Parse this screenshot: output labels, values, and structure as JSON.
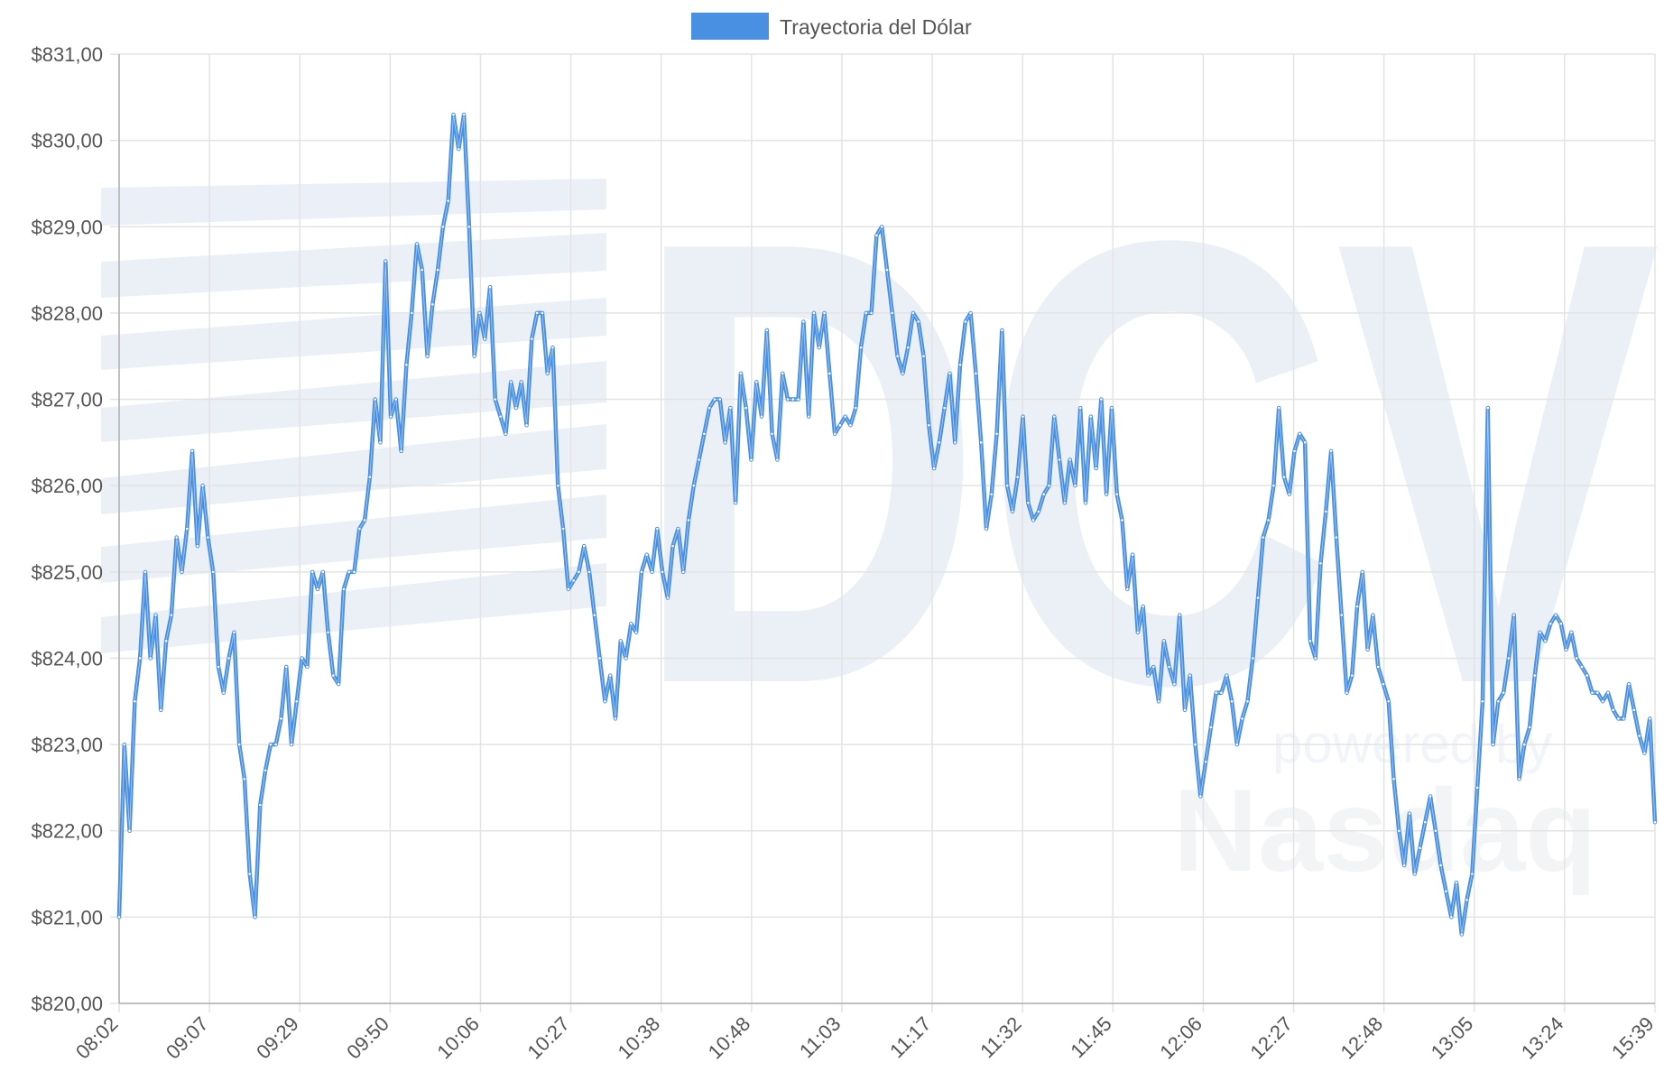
{
  "watermark": {
    "brand": "DCV",
    "tagline": "powered by",
    "partner": "Nasdaq"
  },
  "colors": {
    "series": "#4a90e2",
    "grid": "#e3e3e3",
    "axis": "#b0b0b0",
    "text": "#555555",
    "watermark": "#dbe4f2"
  },
  "chart_data": {
    "type": "line",
    "title": "",
    "xlabel": "",
    "ylabel": "",
    "legend": {
      "position": "top-center",
      "entries": [
        "Trayectoria del Dólar"
      ]
    },
    "grid": true,
    "ylim": [
      820,
      831
    ],
    "y_ticks": [
      "$831,00",
      "$830,00",
      "$829,00",
      "$828,00",
      "$827,00",
      "$826,00",
      "$825,00",
      "$824,00",
      "$823,00",
      "$822,00",
      "$821,00",
      "$820,00"
    ],
    "x_ticks": [
      "08:02",
      "09:07",
      "09:29",
      "09:50",
      "10:06",
      "10:27",
      "10:38",
      "10:48",
      "11:03",
      "11:17",
      "11:32",
      "11:45",
      "12:06",
      "12:27",
      "12:48",
      "13:05",
      "13:24",
      "15:39"
    ],
    "series": [
      {
        "name": "Trayectoria del Dólar",
        "color": "#4a90e2",
        "values": [
          821.0,
          823.0,
          822.0,
          823.5,
          824.0,
          825.0,
          824.0,
          824.5,
          823.4,
          824.2,
          824.5,
          825.4,
          825.0,
          825.5,
          826.4,
          825.3,
          826.0,
          825.4,
          825.0,
          823.9,
          823.6,
          824.0,
          824.3,
          823.0,
          822.6,
          821.5,
          821.0,
          822.3,
          822.7,
          823.0,
          823.0,
          823.3,
          823.9,
          823.0,
          823.5,
          824.0,
          823.9,
          825.0,
          824.8,
          825.0,
          824.3,
          823.8,
          823.7,
          824.8,
          825.0,
          825.0,
          825.5,
          825.6,
          826.1,
          827.0,
          826.5,
          828.6,
          826.8,
          827.0,
          826.4,
          827.4,
          828.0,
          828.8,
          828.5,
          827.5,
          828.1,
          828.5,
          829.0,
          829.3,
          830.3,
          829.9,
          830.3,
          829.0,
          827.5,
          828.0,
          827.7,
          828.3,
          827.0,
          826.8,
          826.6,
          827.2,
          826.9,
          827.2,
          826.7,
          827.7,
          828.0,
          828.0,
          827.3,
          827.6,
          826.0,
          825.5,
          824.8,
          824.9,
          825.0,
          825.3,
          825.0,
          824.5,
          824.0,
          823.5,
          823.8,
          823.3,
          824.2,
          824.0,
          824.4,
          824.3,
          825.0,
          825.2,
          825.0,
          825.5,
          825.0,
          824.7,
          825.3,
          825.5,
          825.0,
          825.6,
          826.0,
          826.3,
          826.6,
          826.9,
          827.0,
          827.0,
          826.5,
          826.9,
          825.8,
          827.3,
          826.9,
          826.3,
          827.2,
          826.8,
          827.8,
          826.6,
          826.3,
          827.3,
          827.0,
          827.0,
          827.0,
          827.9,
          826.8,
          828.0,
          827.6,
          828.0,
          827.3,
          826.6,
          826.7,
          826.8,
          826.7,
          826.9,
          827.6,
          828.0,
          828.0,
          828.9,
          829.0,
          828.5,
          828.0,
          827.5,
          827.3,
          827.6,
          828.0,
          827.9,
          827.5,
          826.7,
          826.2,
          826.5,
          826.9,
          827.3,
          826.5,
          827.4,
          827.9,
          828.0,
          827.3,
          826.5,
          825.5,
          825.9,
          826.6,
          827.8,
          826.0,
          825.7,
          826.1,
          826.8,
          825.8,
          825.6,
          825.7,
          825.9,
          826.0,
          826.8,
          826.3,
          825.8,
          826.3,
          826.0,
          826.9,
          825.8,
          826.8,
          826.2,
          827.0,
          825.9,
          826.9,
          825.9,
          825.6,
          824.8,
          825.2,
          824.3,
          824.6,
          823.8,
          823.9,
          823.5,
          824.2,
          823.9,
          823.7,
          824.5,
          823.4,
          823.8,
          823.0,
          822.4,
          822.8,
          823.2,
          823.6,
          823.6,
          823.8,
          823.5,
          823.0,
          823.3,
          823.5,
          824.0,
          824.7,
          825.4,
          825.6,
          826.0,
          826.9,
          826.1,
          825.9,
          826.4,
          826.6,
          826.5,
          824.2,
          824.0,
          825.1,
          825.7,
          826.4,
          825.4,
          824.5,
          823.6,
          823.8,
          824.6,
          825.0,
          824.1,
          824.5,
          823.9,
          823.7,
          823.5,
          822.6,
          822.0,
          821.6,
          822.2,
          821.5,
          821.8,
          822.1,
          822.4,
          822.0,
          821.6,
          821.3,
          821.0,
          821.4,
          820.8,
          821.2,
          821.5,
          822.5,
          823.5,
          826.9,
          823.0,
          823.5,
          823.6,
          824.0,
          824.5,
          822.6,
          823.0,
          823.2,
          823.8,
          824.3,
          824.2,
          824.4,
          824.5,
          824.4,
          824.1,
          824.3,
          824.0,
          823.9,
          823.8,
          823.6,
          823.6,
          823.5,
          823.6,
          823.4,
          823.3,
          823.3,
          823.7,
          823.4,
          823.1,
          822.9,
          823.3,
          822.1
        ]
      }
    ]
  }
}
